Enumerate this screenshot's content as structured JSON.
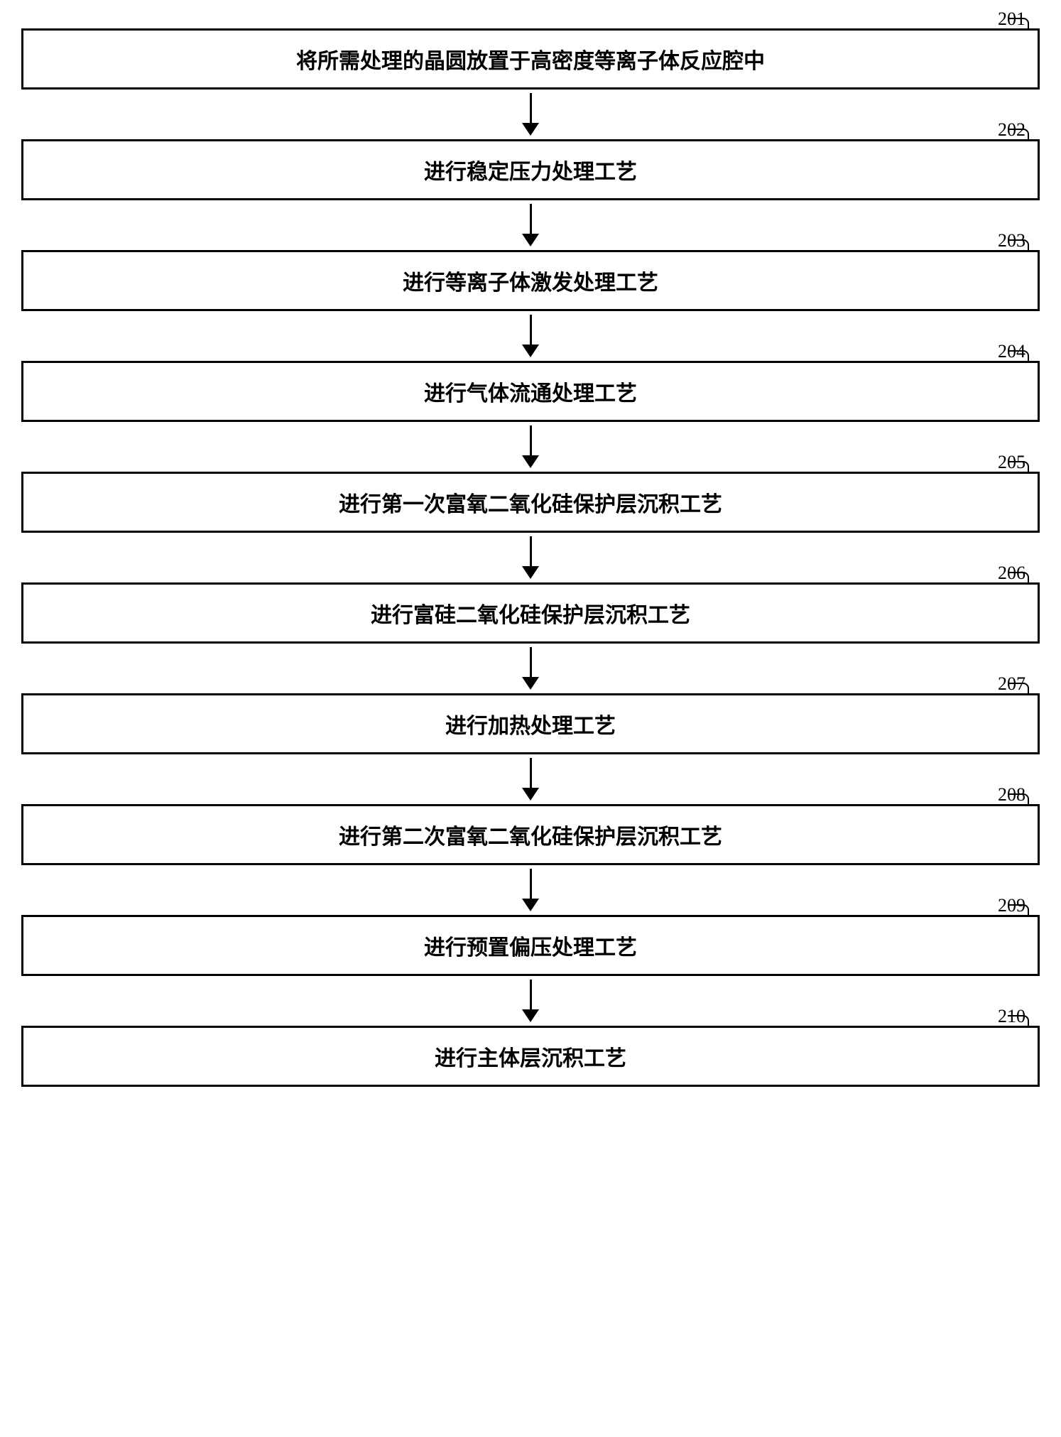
{
  "flowchart": {
    "type": "flowchart",
    "direction": "vertical",
    "background_color": "#ffffff",
    "box_border_color": "#000000",
    "box_border_width": 3,
    "text_color": "#000000",
    "text_fontsize": 30,
    "text_fontweight": "bold",
    "label_fontsize": 26,
    "arrow_color": "#000000",
    "arrow_line_width": 3,
    "arrow_spacing": 70,
    "steps": [
      {
        "label": "201",
        "text": "将所需处理的晶圆放置于高密度等离子体反应腔中"
      },
      {
        "label": "202",
        "text": "进行稳定压力处理工艺"
      },
      {
        "label": "203",
        "text": "进行等离子体激发处理工艺"
      },
      {
        "label": "204",
        "text": "进行气体流通处理工艺"
      },
      {
        "label": "205",
        "text": "进行第一次富氧二氧化硅保护层沉积工艺"
      },
      {
        "label": "206",
        "text": "进行富硅二氧化硅保护层沉积工艺"
      },
      {
        "label": "207",
        "text": "进行加热处理工艺"
      },
      {
        "label": "208",
        "text": "进行第二次富氧二氧化硅保护层沉积工艺"
      },
      {
        "label": "209",
        "text": "进行预置偏压处理工艺"
      },
      {
        "label": "210",
        "text": "进行主体层沉积工艺"
      }
    ]
  }
}
